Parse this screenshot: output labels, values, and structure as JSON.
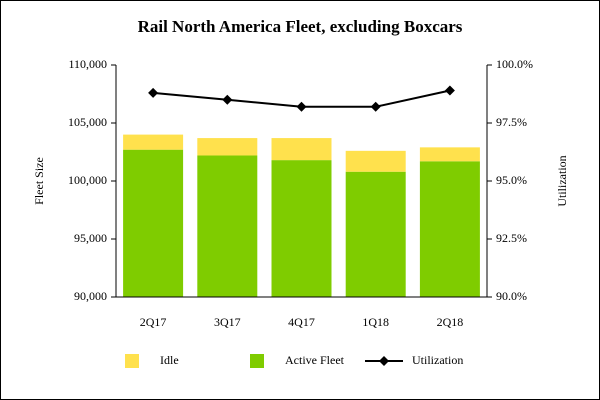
{
  "chart_data": {
    "type": "bar",
    "title": "Rail North America Fleet, excluding Boxcars",
    "y_label": "Fleet Size",
    "y2_label": "Utilization",
    "categories": [
      "2Q17",
      "3Q17",
      "4Q17",
      "1Q18",
      "2Q18"
    ],
    "series": [
      {
        "name": "Idle",
        "color": "#ffe14d",
        "type": "bar",
        "values": [
          1300,
          1500,
          1900,
          1800,
          1200
        ]
      },
      {
        "name": "Active Fleet",
        "color": "#7fcc00",
        "type": "bar",
        "values": [
          102700,
          102200,
          101800,
          100800,
          101700
        ]
      },
      {
        "name": "Utilization",
        "color": "#000000",
        "type": "line",
        "axis": "y2",
        "values": [
          98.8,
          98.5,
          98.2,
          98.2,
          98.9
        ]
      }
    ],
    "stacked": true,
    "ylim": [
      90000,
      110000
    ],
    "yticks": [
      {
        "value": 90000,
        "label": "90,000"
      },
      {
        "value": 95000,
        "label": "95,000"
      },
      {
        "value": 100000,
        "label": "100,000"
      },
      {
        "value": 105000,
        "label": "105,000"
      },
      {
        "value": 110000,
        "label": "110,000"
      }
    ],
    "y2lim": [
      90,
      100
    ],
    "y2ticks": [
      {
        "value": 90,
        "label": "90.0%"
      },
      {
        "value": 92.5,
        "label": "92.5%"
      },
      {
        "value": 95,
        "label": "95.0%"
      },
      {
        "value": 97.5,
        "label": "97.5%"
      },
      {
        "value": 100,
        "label": "100.0%"
      }
    ],
    "grid": false,
    "legend": "bottom"
  }
}
